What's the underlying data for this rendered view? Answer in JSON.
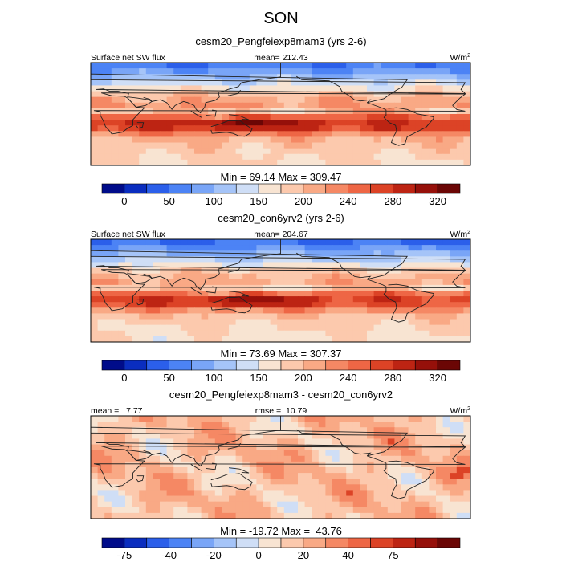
{
  "figure_title": "SON",
  "chart_data": [
    {
      "type": "heatmap",
      "title": "cesm20_Pengfeiexp8mam3 (yrs 2-6)",
      "left_label": "Surface net SW flux",
      "center_label": "mean= 212.43",
      "unit_base": "W/m",
      "unit_sup": "2",
      "minmax": "Min =  69.14 Max = 309.47",
      "colorbar_ticks": [
        "0",
        "50",
        "100",
        "150",
        "200",
        "240",
        "280",
        "320"
      ],
      "colorbar_colors": [
        "#000c8a",
        "#0a2dbf",
        "#2b5fea",
        "#4c83f5",
        "#79a5f7",
        "#a5c4f8",
        "#cfdef6",
        "#f8e4d2",
        "#fcc9ad",
        "#f9a985",
        "#f58864",
        "#ee6645",
        "#dc4326",
        "#bd2413",
        "#96100a",
        "#6b0605"
      ],
      "colorbar_levels": [
        -25,
        0,
        25,
        50,
        75,
        100,
        125,
        150,
        175,
        200,
        220,
        240,
        260,
        280,
        300,
        320,
        340
      ],
      "field_range": [
        60,
        340
      ]
    },
    {
      "type": "heatmap",
      "title": "cesm20_con6yrv2 (yrs 2-6)",
      "left_label": "Surface net SW flux",
      "center_label": "mean= 204.67",
      "unit_base": "W/m",
      "unit_sup": "2",
      "minmax": "Min =  73.69 Max = 307.37",
      "colorbar_ticks": [
        "0",
        "50",
        "100",
        "150",
        "200",
        "240",
        "280",
        "320"
      ],
      "colorbar_colors": [
        "#000c8a",
        "#0a2dbf",
        "#2b5fea",
        "#4c83f5",
        "#79a5f7",
        "#a5c4f8",
        "#cfdef6",
        "#f8e4d2",
        "#fcc9ad",
        "#f9a985",
        "#f58864",
        "#ee6645",
        "#dc4326",
        "#bd2413",
        "#96100a",
        "#6b0605"
      ],
      "colorbar_levels": [
        -25,
        0,
        25,
        50,
        75,
        100,
        125,
        150,
        175,
        200,
        220,
        240,
        260,
        280,
        300,
        320,
        340
      ],
      "field_range": [
        60,
        340
      ]
    },
    {
      "type": "heatmap",
      "title": "cesm20_Pengfeiexp8mam3 - cesm20_con6yrv2",
      "left_label": "mean =   7.77",
      "center_label": "rmse =  10.79",
      "unit_base": "W/m",
      "unit_sup": "2",
      "minmax": "Min = -19.72 Max =  43.76",
      "colorbar_ticks": [
        "-75",
        "-40",
        "-20",
        "0",
        "20",
        "40",
        "75"
      ],
      "colorbar_colors": [
        "#000c8a",
        "#0a2dbf",
        "#2b5fea",
        "#4c83f5",
        "#79a5f7",
        "#a5c4f8",
        "#cfdef6",
        "#f8e4d2",
        "#fcc9ad",
        "#f9a985",
        "#f58864",
        "#ee6645",
        "#dc4326",
        "#bd2413",
        "#96100a",
        "#6b0605"
      ],
      "colorbar_levels": [
        -100,
        -75,
        -60,
        -40,
        -30,
        -20,
        -10,
        0,
        10,
        20,
        30,
        40,
        60,
        75,
        100
      ],
      "field_range": [
        -20,
        45
      ]
    }
  ]
}
